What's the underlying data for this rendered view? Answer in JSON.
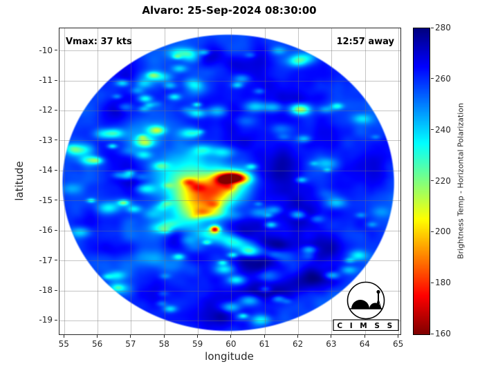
{
  "title": "Alvaro: 25-Sep-2024 08:30:00",
  "annotations": {
    "vmax": "Vmax: 37 kts",
    "away": "12:57 away"
  },
  "axes": {
    "xlabel": "longitude",
    "ylabel": "latitude",
    "xtick_labels": [
      "55",
      "56",
      "57",
      "58",
      "59",
      "60",
      "61",
      "62",
      "63",
      "64",
      "65"
    ],
    "ytick_labels": [
      "-10",
      "-11",
      "-12",
      "-13",
      "-14",
      "-15",
      "-16",
      "-17",
      "-18",
      "-19"
    ]
  },
  "colorbar": {
    "label": "Brightness Temp - Horizontal Polarization",
    "tick_labels": [
      "280",
      "260",
      "240",
      "220",
      "200",
      "180",
      "160"
    ]
  },
  "logo": {
    "text": "C I M S S"
  },
  "colors": {
    "background": "#ffffff",
    "axis": "#262626",
    "grid": "#737373"
  },
  "chart_data": {
    "type": "heatmap",
    "title": "Alvaro: 25-Sep-2024 08:30:00",
    "xlabel": "longitude",
    "ylabel": "latitude",
    "xlim": [
      54.85,
      65.05
    ],
    "ylim_bottom": -19.45,
    "ylim_top": -9.25,
    "xticks": [
      55,
      56,
      57,
      58,
      59,
      60,
      61,
      62,
      63,
      64,
      65
    ],
    "yticks": [
      -10,
      -11,
      -12,
      -13,
      -14,
      -15,
      -16,
      -17,
      -18,
      -19
    ],
    "grid": true,
    "colorbar": {
      "min": 160,
      "max": 280,
      "ticks": [
        280,
        260,
        240,
        220,
        200,
        180,
        160
      ],
      "label": "Brightness Temp - Horizontal Polarization",
      "colormap": "jet_reversed_high_is_blue"
    },
    "storm": {
      "name": "Alvaro",
      "datetime": "25-Sep-2024 08:30:00",
      "vmax_kts": 37,
      "time_offset": "12:57 away",
      "center_lon": 59.95,
      "center_lat": -14.35
    },
    "swath": {
      "center_lon": 59.9,
      "center_lat": -14.4,
      "radius_lon_deg": 4.98,
      "radius_lat_deg": 4.96,
      "background_tb_k": 257
    },
    "features": {
      "cold_core": {
        "lon": 60.05,
        "lat": -14.27,
        "tb_k": 162
      },
      "convective_shield": {
        "lon": 58.9,
        "lat": -14.8,
        "tb_k": 215
      },
      "outer_band": {
        "from_lon": 59.4,
        "from_lat": -16.1,
        "to_lon": 61.5,
        "to_lat": -16.8,
        "tb_k": 228
      },
      "hot_spot": {
        "lon": 59.5,
        "lat": -15.95,
        "tb_k": 180
      }
    }
  }
}
